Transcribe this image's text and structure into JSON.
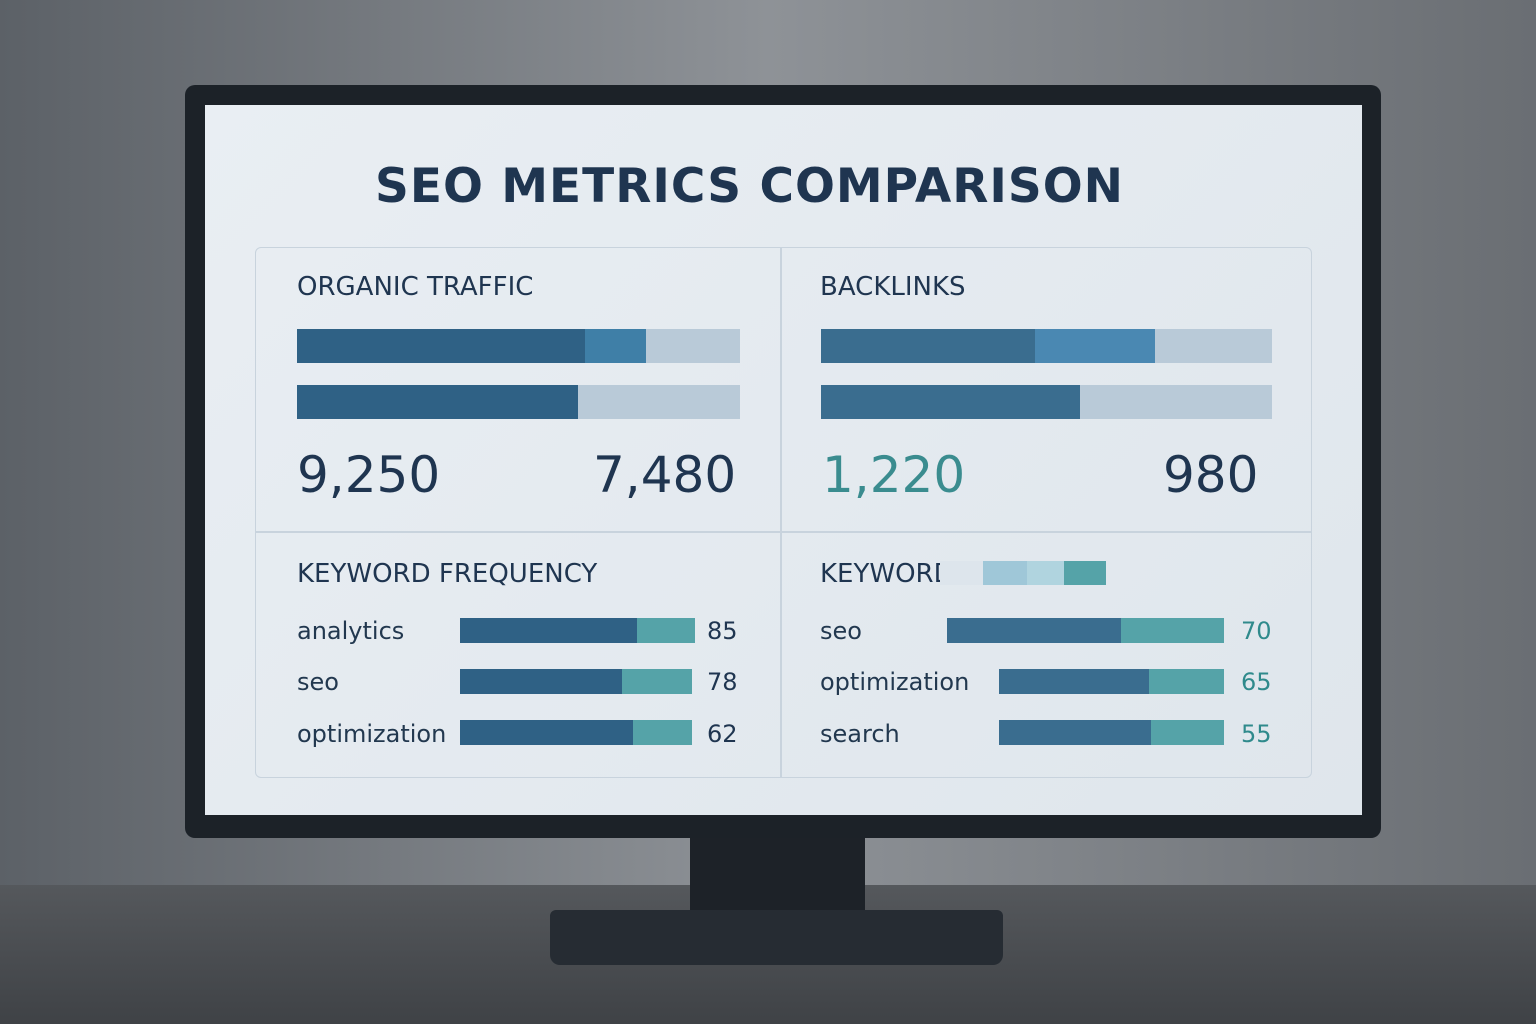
{
  "title": "SEO METRICS COMPARISON",
  "panels": [
    {
      "title": "ORGANIC TRAFFIC",
      "values": [
        "9,250",
        "7,480"
      ]
    },
    {
      "title": "BACKLINKS",
      "values": [
        "1,220",
        "980"
      ]
    },
    {
      "title": "KEYWORD FREQUENCY",
      "rows": [
        {
          "keyword": "analytics",
          "count": 85
        },
        {
          "keyword": "seo",
          "count": 78
        },
        {
          "keyword": "optimization",
          "count": 62
        }
      ]
    },
    {
      "title": "KEYWORD",
      "rows": [
        {
          "keyword": "seo",
          "count": 70
        },
        {
          "keyword": "optimization",
          "count": 65
        },
        {
          "keyword": "search",
          "count": 55
        }
      ]
    }
  ]
}
